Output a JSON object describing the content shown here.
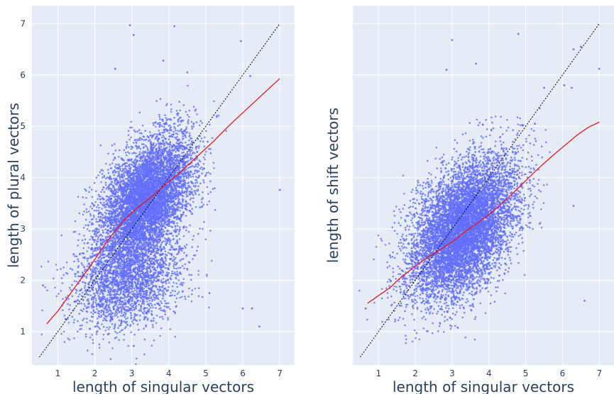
{
  "chart_data": [
    {
      "type": "scatter",
      "xlabel": "length of singular vectors",
      "ylabel": "length of plural vectors",
      "xlim": [
        0.3,
        7.4
      ],
      "ylim": [
        0.35,
        7.35
      ],
      "xticks": [
        1,
        2,
        3,
        4,
        5,
        6,
        7
      ],
      "yticks": [
        1,
        2,
        3,
        4,
        5,
        6,
        7
      ],
      "grid": true,
      "colors": {
        "points": "#636efa",
        "trend": "#e8161d",
        "diagonal": "#000000",
        "plot_bg": "#e5ecf6"
      },
      "cluster": {
        "count": 6500,
        "center": [
          3.4,
          3.6
        ],
        "spread": [
          0.62,
          0.6
        ],
        "correlation": 0.45
      },
      "cluster2": {
        "count": 2400,
        "center": [
          2.9,
          2.0
        ],
        "spread": [
          0.75,
          0.5
        ],
        "correlation": 0.2
      },
      "outliers": [
        [
          2.95,
          6.97
        ],
        [
          4.15,
          6.95
        ],
        [
          3.05,
          6.78
        ],
        [
          5.95,
          6.66
        ],
        [
          3.85,
          6.28
        ],
        [
          2.55,
          6.12
        ],
        [
          7.0,
          3.76
        ],
        [
          6.45,
          1.1
        ],
        [
          6.0,
          1.45
        ],
        [
          6.2,
          5.98
        ],
        [
          4.5,
          6.05
        ],
        [
          6.25,
          1.45
        ],
        [
          5.1,
          1.75
        ],
        [
          5.05,
          4.7
        ],
        [
          0.6,
          1.9
        ]
      ],
      "series": [
        {
          "values_x": [
            0.7,
            1.0,
            1.3,
            1.6,
            1.9,
            2.2,
            2.5,
            2.8,
            3.1,
            3.4,
            3.7,
            4.0,
            4.3,
            4.6,
            4.9,
            5.2,
            5.5,
            5.8,
            6.1,
            6.4,
            6.7,
            7.0
          ],
          "values_y": [
            1.15,
            1.4,
            1.7,
            2.0,
            2.3,
            2.62,
            2.92,
            3.18,
            3.38,
            3.55,
            3.73,
            3.92,
            4.1,
            4.3,
            4.5,
            4.7,
            4.92,
            5.13,
            5.33,
            5.53,
            5.73,
            5.93
          ]
        }
      ],
      "diagonal": [
        [
          0.5,
          0.5
        ],
        [
          7.0,
          7.0
        ]
      ]
    },
    {
      "type": "scatter",
      "xlabel": "length of singular vectors",
      "ylabel": "length of shift vectors",
      "xlim": [
        0.3,
        7.4
      ],
      "ylim": [
        0.35,
        7.35
      ],
      "xticks": [
        1,
        2,
        3,
        4,
        5,
        6,
        7
      ],
      "yticks": [],
      "grid": true,
      "colors": {
        "points": "#636efa",
        "trend": "#e8161d",
        "diagonal": "#000000",
        "plot_bg": "#e5ecf6"
      },
      "cluster": {
        "count": 8000,
        "center": [
          3.3,
          3.0
        ],
        "spread": [
          0.72,
          0.68
        ],
        "correlation": 0.45
      },
      "cluster2": {
        "count": 0,
        "center": [
          3.0,
          2.5
        ],
        "spread": [
          0.5,
          0.5
        ],
        "correlation": 0.0
      },
      "outliers": [
        [
          3.0,
          6.68
        ],
        [
          4.8,
          6.8
        ],
        [
          2.85,
          6.1
        ],
        [
          3.65,
          6.22
        ],
        [
          6.3,
          6.5
        ],
        [
          6.5,
          6.55
        ],
        [
          7.0,
          6.12
        ],
        [
          6.05,
          5.8
        ],
        [
          6.25,
          5.75
        ],
        [
          5.5,
          5.75
        ],
        [
          6.3,
          3.45
        ],
        [
          6.6,
          1.6
        ],
        [
          0.65,
          1.45
        ],
        [
          5.25,
          5.05
        ]
      ],
      "series": [
        {
          "values_x": [
            0.7,
            1.0,
            1.3,
            1.6,
            1.9,
            2.2,
            2.5,
            2.8,
            3.1,
            3.4,
            3.7,
            4.0,
            4.3,
            4.6,
            4.9,
            5.2,
            5.5,
            5.8,
            6.1,
            6.4,
            6.7,
            7.0
          ],
          "values_y": [
            1.55,
            1.7,
            1.85,
            2.05,
            2.22,
            2.38,
            2.52,
            2.65,
            2.8,
            2.97,
            3.12,
            3.28,
            3.46,
            3.66,
            3.87,
            4.08,
            4.28,
            4.47,
            4.65,
            4.83,
            4.98,
            5.08
          ]
        }
      ],
      "diagonal": [
        [
          0.5,
          0.5
        ],
        [
          7.0,
          7.0
        ]
      ]
    }
  ]
}
